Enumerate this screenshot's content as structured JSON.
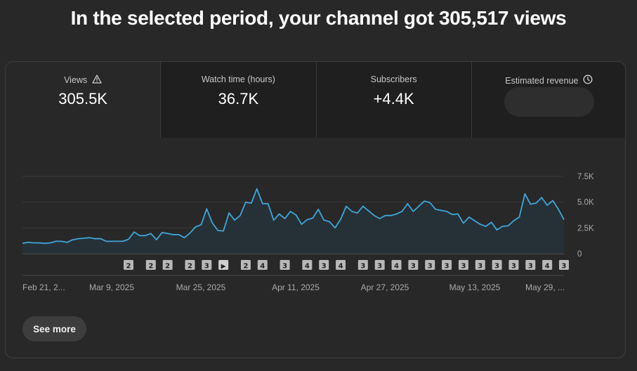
{
  "headline": "In the selected period, your channel got 305,517 views",
  "metrics": [
    {
      "label": "Views",
      "value": "305.5K",
      "icon": "warning-icon"
    },
    {
      "label": "Watch time (hours)",
      "value": "36.7K"
    },
    {
      "label": "Subscribers",
      "value": "+4.4K"
    },
    {
      "label": "Estimated revenue",
      "value": "",
      "icon": "clock-icon"
    }
  ],
  "see_more_label": "See more",
  "colors": {
    "line": "#3ea6d8",
    "area": "#263238",
    "background": "#282828"
  },
  "chart_data": {
    "type": "area",
    "ylim": [
      0,
      7500
    ],
    "y_ticks": [
      {
        "value": 0,
        "label": "0"
      },
      {
        "value": 2500,
        "label": "2.5K"
      },
      {
        "value": 5000,
        "label": "5.0K"
      },
      {
        "value": 7500,
        "label": "7.5K"
      }
    ],
    "x_tick_labels": [
      "Feb 21, 2...",
      "Mar 9, 2025",
      "Mar 25, 2025",
      "Apr 11, 2025",
      "Apr 27, 2025",
      "May 13, 2025",
      "May 29, ..."
    ],
    "x_tick_index": [
      0,
      16,
      32,
      49,
      65,
      81,
      97
    ],
    "series": [
      {
        "values": [
          1000,
          1100,
          1050,
          1050,
          1000,
          1050,
          1200,
          1200,
          1100,
          1350,
          1450,
          1500,
          1550,
          1450,
          1450,
          1200,
          1200,
          1200,
          1200,
          1400,
          2100,
          1750,
          1750,
          1950,
          1350,
          2050,
          1950,
          1850,
          1850,
          1550,
          2000,
          2600,
          2800,
          4350,
          3000,
          2250,
          2200,
          3950,
          3250,
          3700,
          5000,
          4900,
          6300,
          4850,
          4850,
          3250,
          3850,
          3400,
          4100,
          3750,
          2850,
          3300,
          3450,
          4300,
          3250,
          3100,
          2500,
          3350,
          4600,
          4100,
          3950,
          4600,
          4150,
          3700,
          3400,
          3700,
          3700,
          3850,
          4100,
          4850,
          4100,
          4600,
          5100,
          4950,
          4300,
          4200,
          4100,
          3800,
          3850,
          2950,
          3550,
          3200,
          2850,
          2650,
          3050,
          2300,
          2650,
          2700,
          3200,
          3550,
          5800,
          4800,
          4900,
          5450,
          4700,
          5150,
          4300,
          3300
        ]
      }
    ],
    "annotations": [
      {
        "index": 19,
        "label": "2"
      },
      {
        "index": 23,
        "label": "2"
      },
      {
        "index": 26,
        "label": "2"
      },
      {
        "index": 30,
        "label": "2"
      },
      {
        "index": 33,
        "label": "3"
      },
      {
        "index": 36,
        "label": "▶"
      },
      {
        "index": 40,
        "label": "2"
      },
      {
        "index": 43,
        "label": "4"
      },
      {
        "index": 47,
        "label": "3"
      },
      {
        "index": 51,
        "label": "4"
      },
      {
        "index": 54,
        "label": "3"
      },
      {
        "index": 57,
        "label": "4"
      },
      {
        "index": 61,
        "label": "3"
      },
      {
        "index": 64,
        "label": "3"
      },
      {
        "index": 67,
        "label": "4"
      },
      {
        "index": 70,
        "label": "3"
      },
      {
        "index": 73,
        "label": "3"
      },
      {
        "index": 76,
        "label": "3"
      },
      {
        "index": 79,
        "label": "3"
      },
      {
        "index": 82,
        "label": "3"
      },
      {
        "index": 85,
        "label": "3"
      },
      {
        "index": 88,
        "label": "3"
      },
      {
        "index": 91,
        "label": "3"
      },
      {
        "index": 94,
        "label": "4"
      },
      {
        "index": 97,
        "label": "3"
      }
    ]
  }
}
